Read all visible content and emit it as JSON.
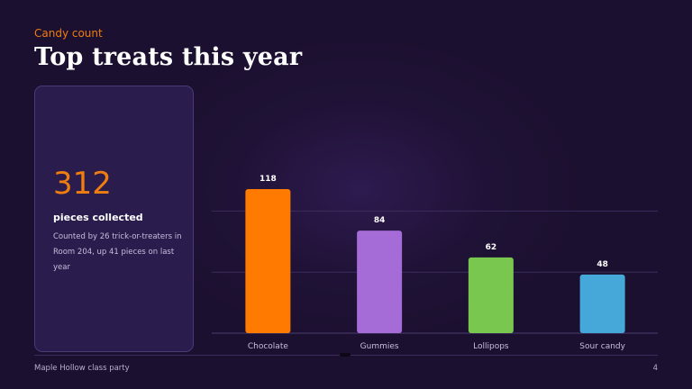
{
  "header": {
    "eyebrow": "Candy count",
    "title": "Top treats this year"
  },
  "stat": {
    "value": "312",
    "label": "pieces collected",
    "description": "Counted by 26 trick-or-treaters in Room 204, up 41 pieces on last year"
  },
  "footer": {
    "left": "Maple Hollow class party",
    "page": "4"
  },
  "colors": {
    "accent": "#f07d10",
    "background": "#1f1236"
  },
  "chart_data": {
    "type": "bar",
    "categories": [
      "Chocolate",
      "Gummies",
      "Lollipops",
      "Sour candy"
    ],
    "values": [
      118,
      84,
      62,
      48
    ],
    "colors": [
      "#ff7a00",
      "#a56bd6",
      "#7ac74f",
      "#46a8d8"
    ],
    "data_labels": true,
    "grid": true,
    "ylim": [
      0,
      150
    ],
    "title": "",
    "xlabel": "",
    "ylabel": ""
  }
}
